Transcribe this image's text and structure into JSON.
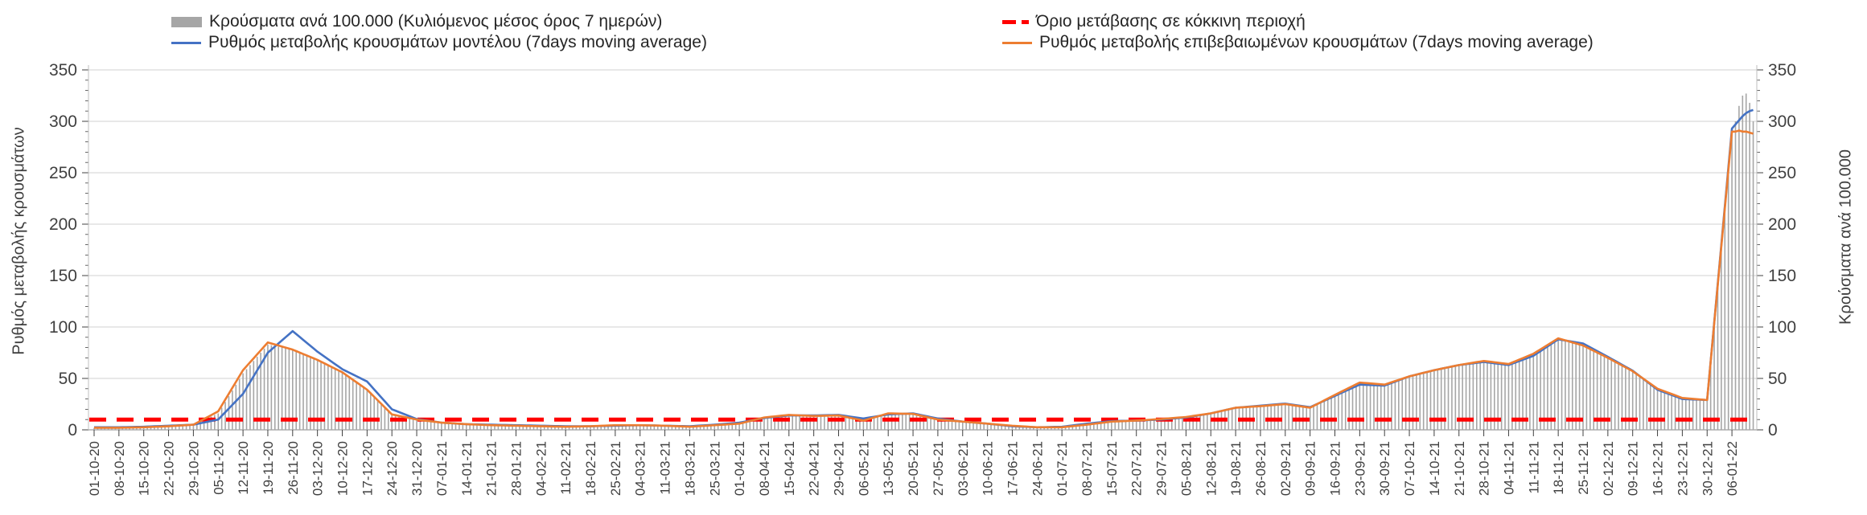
{
  "legend": {
    "items": [
      {
        "label": "Κρούσματα ανά 100.000 (Κυλιόμενος μέσος όρος 7 ημερών)",
        "swatch": "bar",
        "color": "#a6a6a6"
      },
      {
        "label": "Ρυθμός μεταβολής κρουσμάτων μοντέλου (7days moving average)",
        "swatch": "line",
        "color": "#4472c4"
      },
      {
        "label": "Όριο μετάβασης σε κόκκινη περιοχή",
        "swatch": "dashed-line",
        "color": "#ff0000"
      },
      {
        "label": "Ρυθμός μεταβολής επιβεβαιωμένων κρουσμάτων (7days moving average)",
        "swatch": "line",
        "color": "#ed7d31"
      }
    ]
  },
  "axes": {
    "left_title": "Ρυθμός μεταβολής κρουσμάτων",
    "right_title": "Κρούσματα ανά 100.000",
    "y_ticks": [
      0,
      50,
      100,
      150,
      200,
      250,
      300,
      350
    ],
    "y_minor_step": 10
  },
  "chart_data": {
    "type": "bar",
    "subtype": "combo-bar-and-lines",
    "grid": "horizontal",
    "legend_position": "top",
    "ylim": [
      0,
      350
    ],
    "x_labels": [
      "01-10-20",
      "08-10-20",
      "15-10-20",
      "22-10-20",
      "29-10-20",
      "05-11-20",
      "12-11-20",
      "19-11-20",
      "26-11-20",
      "03-12-20",
      "10-12-20",
      "17-12-20",
      "24-12-20",
      "31-12-20",
      "07-01-21",
      "14-01-21",
      "21-01-21",
      "28-01-21",
      "04-02-21",
      "11-02-21",
      "18-02-21",
      "25-02-21",
      "04-03-21",
      "11-03-21",
      "18-03-21",
      "25-03-21",
      "01-04-21",
      "08-04-21",
      "15-04-21",
      "22-04-21",
      "29-04-21",
      "06-05-21",
      "13-05-21",
      "20-05-21",
      "27-05-21",
      "03-06-21",
      "10-06-21",
      "17-06-21",
      "24-06-21",
      "01-07-21",
      "08-07-21",
      "15-07-21",
      "22-07-21",
      "29-07-21",
      "05-08-21",
      "12-08-21",
      "19-08-21",
      "26-08-21",
      "02-09-21",
      "09-09-21",
      "16-09-21",
      "23-09-21",
      "30-09-21",
      "07-10-21",
      "14-10-21",
      "21-10-21",
      "28-10-21",
      "04-11-21",
      "11-11-21",
      "18-11-21",
      "25-11-21",
      "02-12-21",
      "09-12-21",
      "16-12-21",
      "23-12-21",
      "30-12-21",
      "06-01-22"
    ],
    "threshold": {
      "name": "Όριο μετάβασης σε κόκκινη περιοχή",
      "value": 10,
      "color": "#ff0000"
    },
    "series": [
      {
        "name": "Κρούσματα ανά 100.000 (Κυλιόμενος μέσος όρος 7 ημερών)",
        "type": "bar",
        "axis": "right",
        "color": "#a6a6a6",
        "values": [
          2,
          2,
          2.5,
          3.5,
          5,
          16,
          55,
          83,
          78,
          68,
          56,
          39,
          15,
          10,
          7,
          5.5,
          4.5,
          4,
          3.5,
          3,
          3.5,
          4.5,
          4.5,
          4,
          3,
          4.5,
          6,
          12,
          14.5,
          13.5,
          14,
          9,
          16,
          15.5,
          10,
          8,
          6,
          4,
          2.5,
          2.5,
          5,
          8,
          9,
          10.5,
          12.5,
          16,
          21.5,
          23,
          25,
          21.5,
          34,
          46,
          44,
          52,
          58,
          63,
          67,
          64,
          74,
          89,
          82,
          70,
          57,
          40,
          31,
          29,
          290
        ]
      },
      {
        "name": "Ρυθμός μεταβολής κρουσμάτων μοντέλου (7days moving average)",
        "type": "line",
        "axis": "left",
        "color": "#4472c4",
        "values": [
          2.5,
          2.5,
          3,
          4,
          5,
          10,
          35,
          75,
          96,
          76,
          59,
          47,
          20,
          10.5,
          7,
          5.5,
          5,
          4.5,
          4,
          3.5,
          3.5,
          4,
          4.5,
          4,
          3.5,
          5,
          7,
          11.5,
          14,
          14,
          14.5,
          11,
          15,
          16,
          11,
          8,
          6,
          3.5,
          2.5,
          3,
          6,
          8.5,
          9,
          10,
          12,
          16,
          21.5,
          23.5,
          25.5,
          22,
          33,
          44,
          43,
          52,
          58,
          63,
          66,
          63,
          72,
          88,
          84,
          71,
          57.5,
          39,
          30,
          29,
          293
        ]
      },
      {
        "name": "Ρυθμός μεταβολής επιβεβαιωμένων κρουσμάτων (7days moving average)",
        "type": "line",
        "axis": "left",
        "color": "#ed7d31",
        "values": [
          2,
          2,
          2.5,
          3.5,
          5,
          18,
          58,
          85,
          78,
          68,
          56,
          39,
          15,
          10,
          7,
          5.5,
          4.5,
          4,
          3.5,
          3,
          3.5,
          4.5,
          4.5,
          4,
          3,
          4.5,
          6,
          12,
          14.5,
          13.5,
          14,
          9,
          16,
          15.5,
          10,
          8,
          6,
          4,
          2.5,
          2.5,
          5,
          8,
          9,
          10.5,
          12.5,
          16,
          21.5,
          23,
          25,
          21.5,
          34,
          46,
          44,
          52,
          58,
          63,
          67,
          64,
          74,
          89,
          82,
          70,
          57,
          40,
          31,
          29,
          290
        ]
      }
    ],
    "extension_after_last_label": {
      "days": 6,
      "bars": [
        300,
        315,
        325,
        327,
        318,
        300
      ],
      "model": [
        297,
        301,
        305,
        308,
        310,
        311
      ],
      "confirmed": [
        290,
        291,
        290,
        290,
        289,
        288
      ]
    }
  }
}
